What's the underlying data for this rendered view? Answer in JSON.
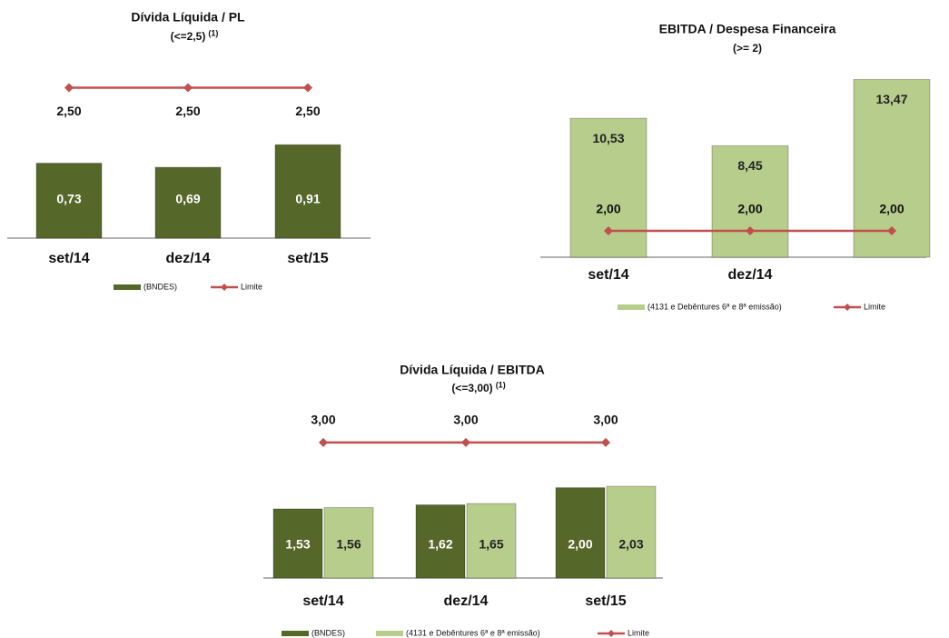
{
  "chart_data": [
    {
      "type": "bar",
      "title": "Dívida Líquida / PL",
      "subtitle": "(<=2,5)",
      "subtitle_ref": "(1)",
      "categories": [
        "set/14",
        "dez/14",
        "set/15"
      ],
      "series": [
        {
          "name": "(BNDES)",
          "color": "#55682a",
          "values": [
            0.73,
            0.69,
            0.91
          ],
          "value_labels": [
            "0,73",
            "0,69",
            "0,91"
          ]
        },
        {
          "name": "Limite",
          "type": "line",
          "axis": "y2",
          "color": "#c0504d",
          "values": [
            2.5,
            2.5,
            2.5
          ],
          "value_labels": [
            "2,50",
            "2,50",
            "2,50"
          ]
        }
      ],
      "ylim": [
        0,
        1.7
      ],
      "y2lim": [
        0,
        2.9
      ]
    },
    {
      "type": "bar",
      "title": "EBITDA / Despesa Financeira",
      "subtitle": "(>= 2)",
      "categories": [
        "set/14",
        "dez/14",
        null
      ],
      "series": [
        {
          "name": "(4131 e Debêntures 6ª e 8ª emissão)",
          "color": "#b7cd8c",
          "values": [
            10.53,
            8.45,
            13.47
          ],
          "value_labels": [
            "10,53",
            "8,45",
            "13,47"
          ]
        },
        {
          "name": "Limite",
          "type": "line",
          "color": "#c0504d",
          "values": [
            2.0,
            2.0,
            2.0
          ],
          "value_labels": [
            "2,00",
            "2,00",
            "2,00"
          ]
        }
      ],
      "ylim": [
        0,
        15.5
      ]
    },
    {
      "type": "bar",
      "title": "Dívida Líquida / EBITDA",
      "subtitle": "(<=3,00)",
      "subtitle_ref": "(1)",
      "categories": [
        "set/14",
        "dez/14",
        "set/15"
      ],
      "series": [
        {
          "name": "(BNDES)",
          "color": "#55682a",
          "values": [
            1.53,
            1.62,
            2.0
          ],
          "value_labels": [
            "1,53",
            "1,62",
            "2,00"
          ]
        },
        {
          "name": "(4131 e Debêntures 6ª e 8ª emissão)",
          "color": "#b7cd8c",
          "values": [
            1.56,
            1.65,
            2.03
          ],
          "value_labels": [
            "1,56",
            "1,65",
            "2,03"
          ]
        },
        {
          "name": "Limite",
          "type": "line",
          "color": "#c0504d",
          "values": [
            3.0,
            3.0,
            3.0
          ],
          "value_labels": [
            "3,00",
            "3,00",
            "3,00"
          ]
        }
      ],
      "ylim": [
        0,
        3.3
      ]
    }
  ]
}
